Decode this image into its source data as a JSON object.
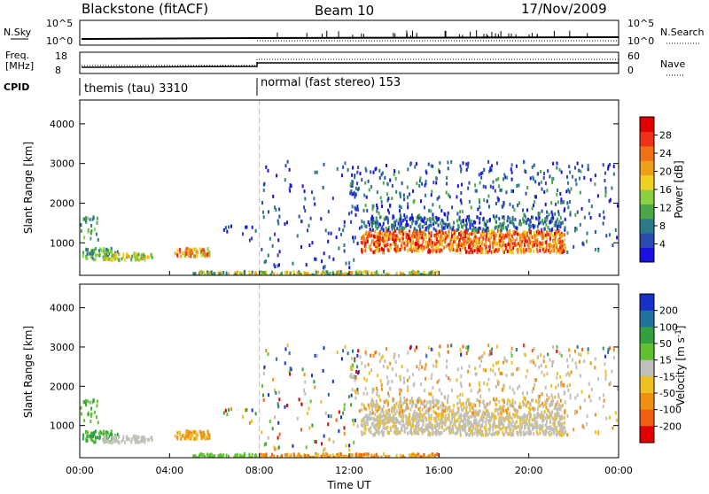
{
  "header": {
    "radar": "Blackstone (fitACF)",
    "beam": "Beam 10",
    "date": "17/Nov/2009"
  },
  "status_panels": {
    "nsky_label": "N.Sky",
    "nsky_ticks": [
      "10^5",
      "10^0"
    ],
    "nsearch_label": "N.Search",
    "freq_label": "Freq.",
    "freq_unit": "[MHz]",
    "freq_ticks": [
      "18",
      "8"
    ],
    "nave_label": "Nave",
    "nave_ticks": [
      "60",
      "0"
    ],
    "cpid_label": "CPID",
    "cpid_segments": [
      {
        "text": "themis (tau) 3310",
        "start_hour": 0
      },
      {
        "text": "normal (fast stereo) 153",
        "start_hour": 8
      }
    ]
  },
  "chart_data": [
    {
      "type": "heatmap",
      "name": "power",
      "ylabel": "Slant Range [km]",
      "xlabel": "Time UT",
      "x_range_hours": [
        0,
        24
      ],
      "x_tick_labels": [
        "00:00",
        "04:00",
        "08:00",
        "12:00",
        "16:00",
        "20:00",
        "00:00"
      ],
      "ylim": [
        180,
        4600
      ],
      "y_ticks": [
        1000,
        2000,
        3000,
        4000
      ],
      "mode_change_hour": 8,
      "colorbar": {
        "label": "Power [dB]",
        "ticks": [
          "4",
          "8",
          "12",
          "16",
          "20",
          "24",
          "28"
        ],
        "colors": [
          "#1a10e0",
          "#2a4ab0",
          "#2a7a8a",
          "#4aa84a",
          "#8ad040",
          "#f0d020",
          "#f0a018",
          "#f07018",
          "#f03018",
          "#e00000"
        ]
      }
    },
    {
      "type": "heatmap",
      "name": "velocity",
      "ylabel": "Slant Range [km]",
      "xlabel": "Time UT",
      "x_range_hours": [
        0,
        24
      ],
      "x_tick_labels": [
        "00:00",
        "04:00",
        "08:00",
        "12:00",
        "16:00",
        "20:00",
        "00:00"
      ],
      "ylim": [
        180,
        4600
      ],
      "y_ticks": [
        1000,
        2000,
        3000,
        4000
      ],
      "mode_change_hour": 8,
      "colorbar": {
        "label": "Velocity [m s-1]",
        "ticks": [
          "200",
          "100",
          "50",
          "15",
          "-15",
          "-50",
          "-100",
          "-200"
        ],
        "colors": [
          "#1830c8",
          "#2070a0",
          "#30a040",
          "#60c030",
          "#c0c0b8",
          "#f0c020",
          "#f09010",
          "#f06010",
          "#e00000"
        ]
      }
    }
  ],
  "x_axis_title": "Time UT"
}
